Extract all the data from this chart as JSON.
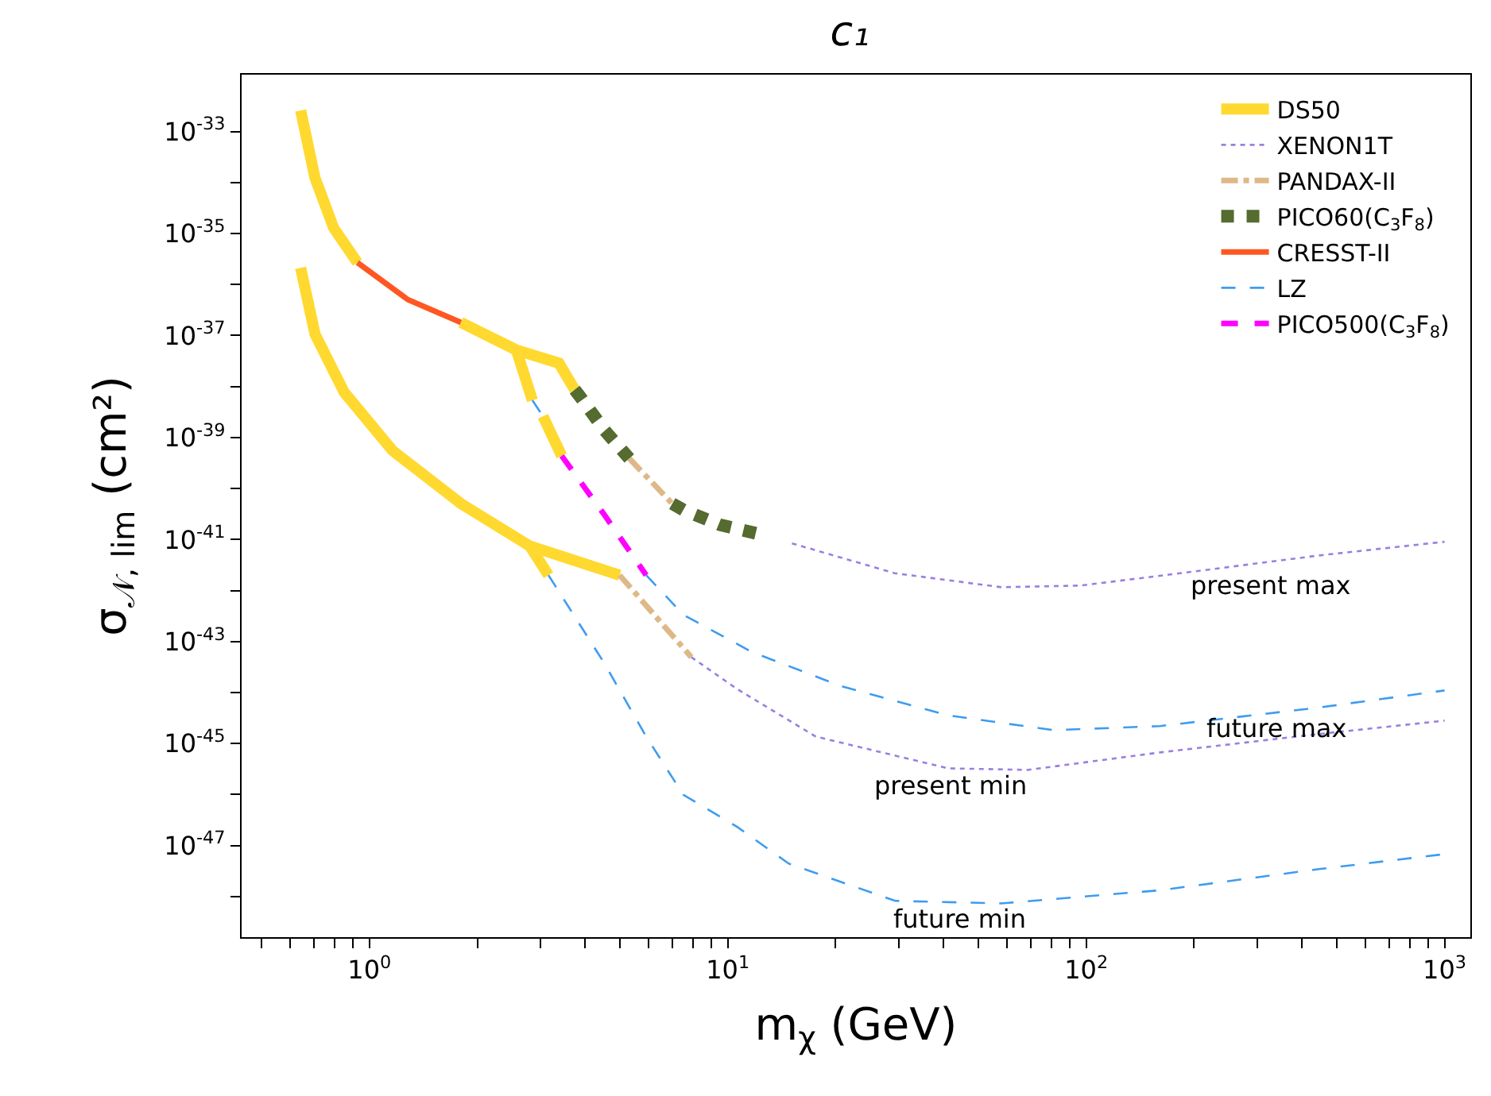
{
  "chart_data": {
    "type": "line",
    "title": "c₁",
    "xlabel": "m$_{χ}$ (GeV)",
    "ylabel": "σ$_{𝒩, lim}$ (cm²)",
    "log": "xy",
    "legend": "top right",
    "xlim": [
      0.44,
      1180
    ],
    "ylim": [
      1.6e-49,
      1.3e-32
    ],
    "xticks": [
      {
        "value": 0.5,
        "label": null
      },
      {
        "value": 0.6,
        "label": null
      },
      {
        "value": 0.7,
        "label": null
      },
      {
        "value": 0.8,
        "label": null
      },
      {
        "value": 0.9,
        "label": null
      },
      {
        "value": 1,
        "label": "10$^{0}$"
      },
      {
        "value": 2,
        "label": null
      },
      {
        "value": 3,
        "label": null
      },
      {
        "value": 4,
        "label": null
      },
      {
        "value": 5,
        "label": null
      },
      {
        "value": 6,
        "label": null
      },
      {
        "value": 7,
        "label": null
      },
      {
        "value": 8,
        "label": null
      },
      {
        "value": 9,
        "label": null
      },
      {
        "value": 10,
        "label": "10$^{1}$"
      },
      {
        "value": 20,
        "label": null
      },
      {
        "value": 30,
        "label": null
      },
      {
        "value": 40,
        "label": null
      },
      {
        "value": 50,
        "label": null
      },
      {
        "value": 60,
        "label": null
      },
      {
        "value": 70,
        "label": null
      },
      {
        "value": 80,
        "label": null
      },
      {
        "value": 90,
        "label": null
      },
      {
        "value": 100,
        "label": "10$^{2}$"
      },
      {
        "value": 200,
        "label": null
      },
      {
        "value": 300,
        "label": null
      },
      {
        "value": 400,
        "label": null
      },
      {
        "value": 500,
        "label": null
      },
      {
        "value": 600,
        "label": null
      },
      {
        "value": 700,
        "label": null
      },
      {
        "value": 800,
        "label": null
      },
      {
        "value": 900,
        "label": null
      },
      {
        "value": 1000,
        "label": "10$^{3}$"
      }
    ],
    "yticks": [
      {
        "value": 1e-48,
        "label": null
      },
      {
        "value": 1e-47,
        "label": "10$^{-47}$"
      },
      {
        "value": 1e-46,
        "label": null
      },
      {
        "value": 1e-45,
        "label": "10$^{-45}$"
      },
      {
        "value": 1e-44,
        "label": null
      },
      {
        "value": 1e-43,
        "label": "10$^{-43}$"
      },
      {
        "value": 1e-42,
        "label": null
      },
      {
        "value": 1e-41,
        "label": "10$^{-41}$"
      },
      {
        "value": 1e-40,
        "label": null
      },
      {
        "value": 1e-39,
        "label": "10$^{-39}$"
      },
      {
        "value": 1e-38,
        "label": null
      },
      {
        "value": 1e-37,
        "label": "10$^{-37}$"
      },
      {
        "value": 1e-36,
        "label": null
      },
      {
        "value": 1e-35,
        "label": "10$^{-35}$"
      },
      {
        "value": 1e-34,
        "label": null
      },
      {
        "value": 1e-33,
        "label": "10$^{-33}$"
      }
    ],
    "series": [
      {
        "name": "DS50",
        "color": "#ffd92f",
        "line_style": "solid",
        "x": [
          0.643,
          0.705,
          0.795,
          0.926,
          null,
          1.8,
          2.57,
          3.38,
          3.74,
          null,
          2.57,
          2.85,
          null,
          3.05,
          3.44,
          null,
          0.643,
          0.705,
          0.851,
          1.16,
          1.8,
          2.8,
          4.99,
          null,
          2.8,
          3.16
        ],
        "values": [
          2.58e-33,
          1.23e-34,
          1.28e-35,
          2.69e-36,
          null,
          1.8e-37,
          5.21e-38,
          2.87e-38,
          8.67e-39,
          null,
          5.21e-38,
          5.36e-39,
          null,
          2.61e-39,
          4.36e-40,
          null,
          2.12e-36,
          1.07e-37,
          7.67e-39,
          5.56e-40,
          5.06e-41,
          7.5e-42,
          2e-42,
          null,
          7.5e-42,
          2e-42
        ]
      },
      {
        "name": "XENON1T",
        "color": "#9b7fe0",
        "line_style": "dotted",
        "x": [
          15.1,
          29.2,
          58.0,
          96.4,
          190.5,
          446.7,
          1000,
          null,
          7.91,
          10.6,
          17.6,
          41.2,
          68.7,
          160.7,
          446.7,
          1000
        ],
        "values": [
          8.41e-42,
          2.19e-42,
          1.16e-42,
          1.25e-42,
          2.26e-42,
          4.88e-42,
          9.04e-42,
          null,
          4.95e-44,
          1.18e-44,
          1.37e-45,
          3.27e-46,
          3.04e-46,
          6.7e-46,
          1.54e-45,
          2.81e-45
        ]
      },
      {
        "name": "PANDAX-II",
        "color": "#deb887",
        "line_style": "dashdot",
        "x": [
          5.31,
          7.0,
          null,
          4.99,
          7.91
        ],
        "values": [
          3.88e-40,
          5.06e-41,
          null,
          2e-42,
          4.95e-44
        ]
      },
      {
        "name": "PICO60(C$_{3}$F$_{8}$)",
        "color": "#556b2f",
        "line_style": "dotted",
        "x": [
          3.74,
          3.87,
          4.51,
          5.31,
          null,
          7.0,
          7.52,
          9.5,
          12.3
        ],
        "values": [
          8.67e-39,
          6.37e-39,
          1.44e-39,
          3.88e-40,
          null,
          5.06e-41,
          3.8e-41,
          1.95e-41,
          1.27e-41
        ]
      },
      {
        "name": "CRESST-II",
        "color": "#ff5722",
        "line_style": "solid",
        "x": [
          0.926,
          1.28,
          1.8
        ],
        "values": [
          2.69e-36,
          5.06e-37,
          1.8e-37
        ]
      },
      {
        "name": "LZ",
        "color": "#3d9cf0",
        "line_style": "dashed",
        "x": [
          2.85,
          3.05,
          null,
          5.92,
          7.52,
          11.65,
          20.8,
          41.2,
          81.1,
          160.7,
          446.7,
          1000,
          null,
          3.16,
          4.51,
          5.92,
          7.52,
          10.6,
          14.8,
          29.3,
          58.0,
          160.7,
          446.7,
          1000
        ],
        "values": [
          5.36e-39,
          2.61e-39,
          null,
          2e-42,
          3.34e-43,
          6.28e-44,
          1.32e-44,
          3.56e-45,
          1.83e-45,
          2.2e-45,
          5.09e-45,
          1.1e-44,
          null,
          2e-42,
          3.88e-44,
          1.37e-45,
          9.86e-47,
          2.35e-47,
          4.42e-48,
          8.24e-49,
          7.35e-49,
          1.33e-48,
          3.46e-48,
          6.79e-48
        ]
      },
      {
        "name": "PICO500(C$_{3}$F$_{8}$)",
        "color": "#ff00ff",
        "line_style": "dashed",
        "x": [
          3.44,
          4.51,
          5.92
        ],
        "values": [
          4.36e-40,
          3.15e-41,
          2e-42
        ]
      }
    ],
    "annotations": [
      "present max",
      "future max",
      "present min",
      "future min"
    ]
  }
}
